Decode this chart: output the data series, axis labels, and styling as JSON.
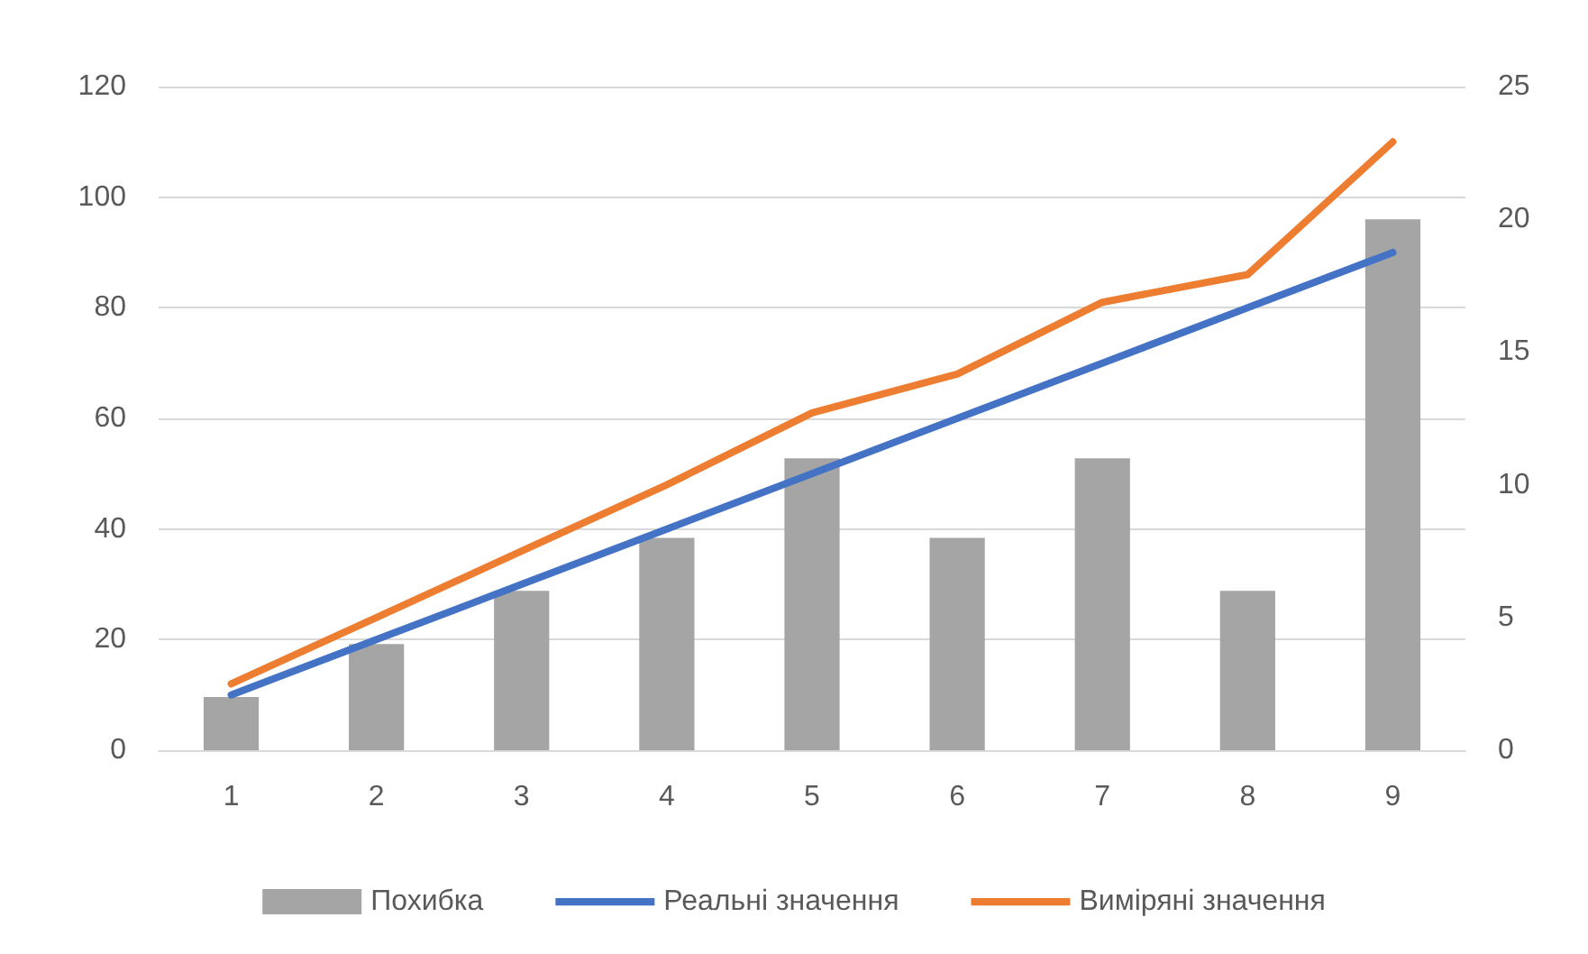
{
  "chart_data": {
    "type": "bar",
    "categories": [
      "1",
      "2",
      "3",
      "4",
      "5",
      "6",
      "7",
      "8",
      "9"
    ],
    "series": [
      {
        "name": "Похибка",
        "axis": "y2",
        "color": "#a5a5a5",
        "values": [
          2,
          4,
          6,
          8,
          11,
          8,
          11,
          6,
          20
        ]
      },
      {
        "name": "Реальні значення",
        "type": "line",
        "color": "#4472c4",
        "values": [
          10,
          20,
          30,
          40,
          50,
          60,
          70,
          80,
          90
        ]
      },
      {
        "name": "Виміряні значення",
        "type": "line",
        "color": "#ed7d31",
        "values": [
          12,
          24,
          36,
          48,
          61,
          68,
          81,
          86,
          110
        ]
      }
    ],
    "ylim": [
      0,
      120
    ],
    "yticks": [
      0,
      20,
      40,
      60,
      80,
      100,
      120
    ],
    "y2lim": [
      0,
      25
    ],
    "y2ticks": [
      0,
      5,
      10,
      15,
      20,
      25
    ],
    "grid": "y",
    "legend": "bottom",
    "marker": "none",
    "line_style": "solid"
  }
}
